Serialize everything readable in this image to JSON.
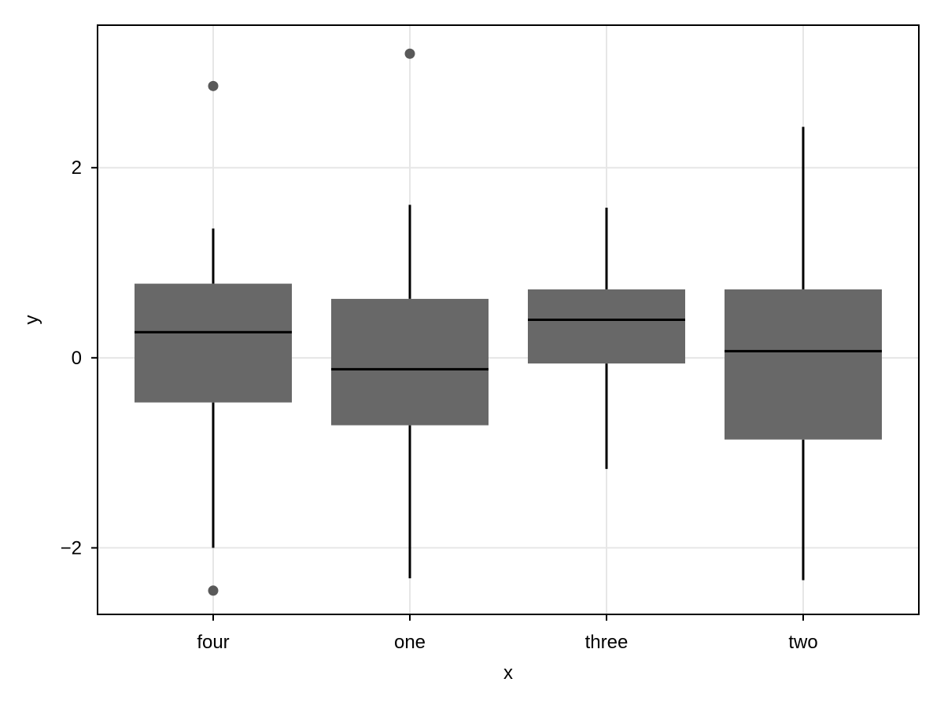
{
  "chart_data": {
    "type": "box",
    "title": "",
    "xlabel": "x",
    "ylabel": "y",
    "ylim": [
      -2.7,
      3.5
    ],
    "yticks": [
      -2,
      0,
      2
    ],
    "ytick_labels": [
      "−2",
      "0",
      "2"
    ],
    "grid": true,
    "categories": [
      "four",
      "one",
      "three",
      "two"
    ],
    "boxes": [
      {
        "category": "four",
        "whisker_low": -2.0,
        "q1": -0.47,
        "median": 0.27,
        "q3": 0.78,
        "whisker_high": 1.36,
        "outliers": [
          2.86,
          -2.45
        ]
      },
      {
        "category": "one",
        "whisker_low": -2.32,
        "q1": -0.71,
        "median": -0.12,
        "q3": 0.62,
        "whisker_high": 1.61,
        "outliers": [
          3.2
        ]
      },
      {
        "category": "three",
        "whisker_low": -1.17,
        "q1": -0.06,
        "median": 0.4,
        "q3": 0.72,
        "whisker_high": 1.58,
        "outliers": []
      },
      {
        "category": "two",
        "whisker_low": -2.34,
        "q1": -0.86,
        "median": 0.07,
        "q3": 0.72,
        "whisker_high": 2.43,
        "outliers": []
      }
    ],
    "colors": {
      "box_fill": "#686868",
      "median": "#000000",
      "whisker": "#000000",
      "outlier": "#595959",
      "grid": "#e6e6e6",
      "frame": "#000000"
    }
  }
}
